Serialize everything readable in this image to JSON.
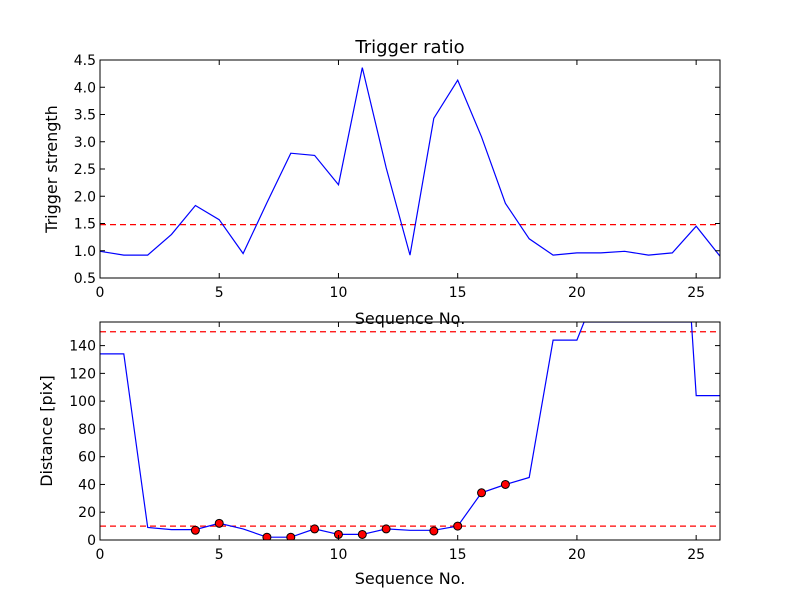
{
  "colors": {
    "line": "#0000ff",
    "threshold": "#ff0000",
    "marker_fill": "#ff0000",
    "marker_edge": "#000000"
  },
  "chart_data": [
    {
      "type": "line",
      "title": "Trigger ratio",
      "xlabel": "Sequence No.",
      "ylabel": "Trigger strength",
      "xlim": [
        0,
        26
      ],
      "ylim": [
        0.5,
        4.5
      ],
      "xticks": [
        0,
        5,
        10,
        15,
        20,
        25
      ],
      "yticks": [
        0.5,
        1.0,
        1.5,
        2.0,
        2.5,
        3.0,
        3.5,
        4.0,
        4.5
      ],
      "ytick_labels": [
        "0.5",
        "1.0",
        "1.5",
        "2.0",
        "2.5",
        "3.0",
        "3.5",
        "4.0",
        "4.5"
      ],
      "grid": false,
      "line": {
        "x": [
          0,
          1,
          2,
          3,
          4,
          5,
          6,
          7,
          8,
          9,
          10,
          11,
          12,
          13,
          14,
          15,
          16,
          17,
          18,
          19,
          20,
          21,
          22,
          23,
          24,
          25,
          26
        ],
        "y": [
          0.99,
          0.92,
          0.92,
          1.3,
          1.83,
          1.57,
          0.95,
          1.88,
          2.79,
          2.75,
          2.21,
          4.36,
          2.52,
          0.92,
          3.43,
          4.13,
          3.09,
          1.87,
          1.22,
          0.92,
          0.96,
          0.96,
          0.99,
          0.92,
          0.96,
          1.45,
          0.9
        ]
      },
      "threshold": 1.48
    },
    {
      "type": "line",
      "title": "",
      "xlabel": "Sequence No.",
      "ylabel": "Distance [pix]",
      "xlim": [
        0,
        26
      ],
      "ylim": [
        0,
        157
      ],
      "xticks": [
        0,
        5,
        10,
        15,
        20,
        25
      ],
      "yticks": [
        0,
        20,
        40,
        60,
        80,
        100,
        120,
        140
      ],
      "ytick_labels": [
        "0",
        "20",
        "40",
        "60",
        "80",
        "100",
        "120",
        "140"
      ],
      "grid": false,
      "line": {
        "x": [
          0,
          1,
          2,
          3,
          4,
          5,
          6,
          7,
          8,
          9,
          10,
          11,
          12,
          13,
          14,
          15,
          16,
          17,
          18,
          19,
          20,
          20.3,
          24.8,
          25,
          26
        ],
        "y": [
          134,
          134,
          9,
          7.5,
          7.5,
          12,
          8,
          2,
          2,
          8,
          4,
          4,
          8,
          7,
          7,
          10,
          34,
          40,
          45,
          144,
          144,
          157,
          157,
          104,
          104
        ]
      },
      "markers": {
        "x": [
          4,
          5,
          7,
          8,
          9,
          10,
          11,
          12,
          14,
          15,
          16,
          17
        ],
        "y": [
          7,
          12,
          2,
          2,
          8,
          4,
          4,
          8,
          6.5,
          10,
          34,
          40
        ]
      },
      "thresholds": [
        10,
        150
      ]
    }
  ]
}
